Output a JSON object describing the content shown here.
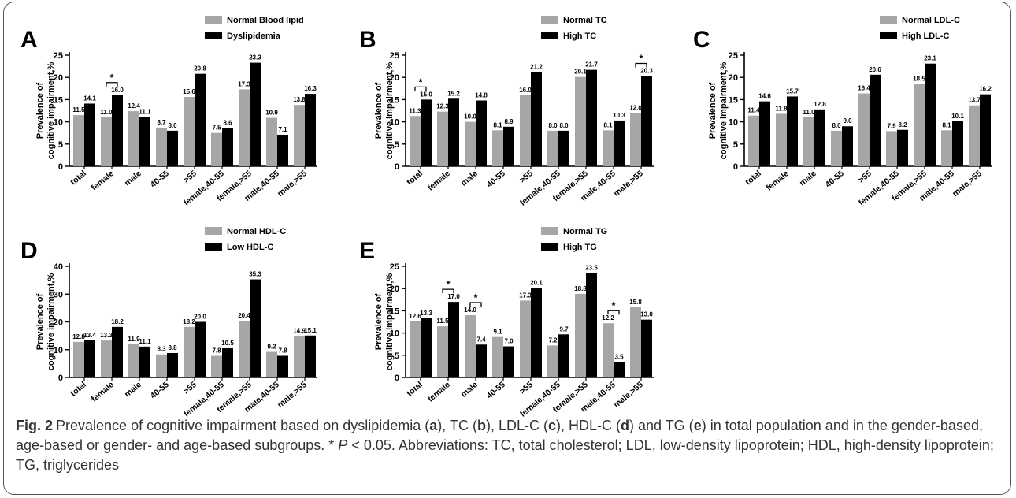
{
  "colors": {
    "normal": "#A6A6A6",
    "abnormal": "#000000",
    "axis": "#000000",
    "caption": "#333333"
  },
  "categories": [
    "total",
    "female",
    "male",
    "40-55",
    ">55",
    "female,40-55",
    "female,>55",
    "male,40-55",
    "male,>55"
  ],
  "chart_data": [
    {
      "panel": "A",
      "type": "bar",
      "ylabel": [
        "Prevalence of",
        "cognitive impairment,%"
      ],
      "ylim": [
        0,
        25
      ],
      "yticks": [
        0,
        5,
        10,
        15,
        20,
        25
      ],
      "legend": "top-right",
      "series": [
        {
          "name": "Normal Blood lipid",
          "values": [
            11.5,
            11.0,
            12.4,
            8.7,
            15.6,
            7.5,
            17.3,
            10.9,
            13.8
          ],
          "labels": [
            "11.5",
            "11.0",
            "12.4",
            "8.7",
            "15.6",
            "7.5",
            "17.3",
            "10.9",
            "13.8"
          ]
        },
        {
          "name": "Dyslipidemia",
          "values": [
            14.1,
            16.0,
            11.1,
            8.0,
            20.8,
            8.6,
            23.3,
            7.1,
            16.3
          ],
          "labels": [
            "14.1",
            "16.0",
            "11.1",
            "8.0",
            "20.8",
            "8.6",
            "23.3",
            "7.1",
            "16.3"
          ]
        }
      ],
      "significance": [
        1
      ]
    },
    {
      "panel": "B",
      "type": "bar",
      "ylabel": [
        "Prevalence of",
        "cognitive impairment,%"
      ],
      "ylim": [
        0,
        25
      ],
      "yticks": [
        0,
        5,
        10,
        15,
        20,
        25
      ],
      "legend": "top-right",
      "series": [
        {
          "name": "Normal TC",
          "values": [
            11.3,
            12.3,
            10.0,
            8.1,
            16.0,
            8.0,
            20.1,
            8.1,
            12.0
          ],
          "labels": [
            "11.3",
            "12.3",
            "10.0",
            "8.1",
            "16.0",
            "8.0",
            "20.1",
            "8.1",
            "12.0"
          ]
        },
        {
          "name": "High TC",
          "values": [
            15.0,
            15.2,
            14.8,
            8.9,
            21.2,
            8.0,
            21.7,
            10.3,
            20.3
          ],
          "labels": [
            "15.0",
            "15.2",
            "14.8",
            "8.9",
            "21.2",
            "8.0",
            "21.7",
            "10.3",
            "20.3"
          ]
        }
      ],
      "significance": [
        0,
        8
      ]
    },
    {
      "panel": "C",
      "type": "bar",
      "ylabel": [
        "Prevalence of",
        "cognitive impairment,%"
      ],
      "ylim": [
        0,
        25
      ],
      "yticks": [
        0,
        5,
        10,
        15,
        20,
        25
      ],
      "legend": "top-right",
      "series": [
        {
          "name": "Normal LDL-C",
          "values": [
            11.4,
            11.8,
            11.0,
            8.0,
            16.4,
            7.9,
            18.5,
            8.1,
            13.7
          ],
          "labels": [
            "11.4",
            "11.8",
            "11.0",
            "8.0",
            "16.4",
            "7.9",
            "18.5",
            "8.1",
            "13.7"
          ]
        },
        {
          "name": "High LDL-C",
          "values": [
            14.6,
            15.7,
            12.8,
            9.0,
            20.6,
            8.2,
            23.1,
            10.1,
            16.2
          ],
          "labels": [
            "14.6",
            "15.7",
            "12.8",
            "9.0",
            "20.6",
            "8.2",
            "23.1",
            "10.1",
            "16.2"
          ]
        }
      ],
      "significance": []
    },
    {
      "panel": "D",
      "type": "bar",
      "ylabel": [
        "Prevalence of",
        "cognitive impairment,%"
      ],
      "ylim": [
        0,
        40
      ],
      "yticks": [
        0,
        10,
        20,
        30,
        40
      ],
      "legend": "top-right",
      "series": [
        {
          "name": "Normal HDL-C",
          "values": [
            12.8,
            13.3,
            11.9,
            8.3,
            18.2,
            7.8,
            20.4,
            9.2,
            14.9
          ],
          "labels": [
            "12.8",
            "13.3",
            "11.9",
            "8.3",
            "18.2",
            "7.8",
            "20.4",
            "9.2",
            "14.9"
          ]
        },
        {
          "name": "Low HDL-C",
          "values": [
            13.4,
            18.2,
            11.1,
            8.8,
            20.0,
            10.5,
            35.3,
            7.8,
            15.1
          ],
          "labels": [
            "13.4",
            "18.2",
            "11.1",
            "8.8",
            "20.0",
            "10.5",
            "35.3",
            "7.8",
            "15.1"
          ]
        }
      ],
      "significance": []
    },
    {
      "panel": "E",
      "type": "bar",
      "ylabel": [
        "Prevalence of",
        "cognitive impairment,%"
      ],
      "ylim": [
        0,
        25
      ],
      "yticks": [
        0,
        5,
        10,
        15,
        20,
        25
      ],
      "legend": "top-right",
      "series": [
        {
          "name": "Normal TG",
          "values": [
            12.6,
            11.5,
            14.0,
            9.1,
            17.3,
            7.2,
            18.8,
            12.2,
            15.8
          ],
          "labels": [
            "12.6",
            "11.5",
            "14.0",
            "9.1",
            "17.3",
            "7.2",
            "18.8",
            "12.2",
            "15.8"
          ]
        },
        {
          "name": "High TG",
          "values": [
            13.3,
            17.0,
            7.4,
            7.0,
            20.1,
            9.7,
            23.5,
            3.5,
            13.0
          ],
          "labels": [
            "13.3",
            "17.0",
            "7.4",
            "7.0",
            "20.1",
            "9.7",
            "23.5",
            "3.5",
            "13.0"
          ]
        }
      ],
      "significance": [
        1,
        2,
        7
      ]
    }
  ],
  "significance_mark": "*",
  "caption": {
    "label": "Fig. 2",
    "t1": "Prevalence of cognitive impairment based on dyslipidemia (",
    "a": "a",
    "t2": "), TC (",
    "b": "b",
    "t3": "), LDL-C (",
    "c": "c",
    "t4": "), HDL-C (",
    "d": "d",
    "t5": ") and TG (",
    "e": "e",
    "t6": ") in total population and in the gender-based, age-based or gender- and age-based subgroups. * ",
    "p": "P",
    "t7": " < 0.05. Abbreviations: TC, total cholesterol; LDL, low-density lipoprotein; HDL, high-density lipoprotein; TG, triglycerides"
  }
}
